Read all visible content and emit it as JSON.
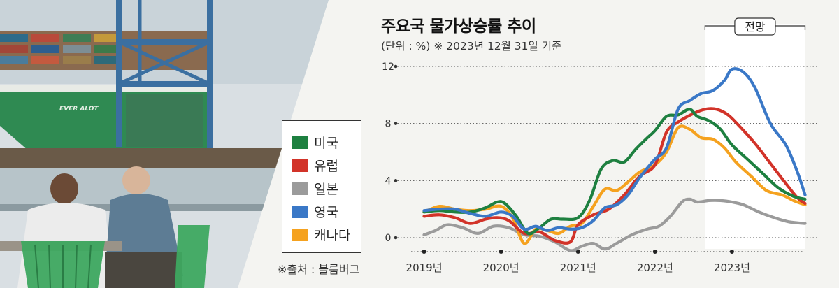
{
  "colors": {
    "us": "#1e8040",
    "europe": "#d23329",
    "japan": "#9b9b9b",
    "uk": "#3a78c7",
    "canada": "#f5a21f",
    "grid": "#555555",
    "forecast_band": "#ffffff"
  },
  "legend": [
    {
      "label": "미국",
      "color": "#1e8040"
    },
    {
      "label": "유럽",
      "color": "#d23329"
    },
    {
      "label": "일본",
      "color": "#9b9b9b"
    },
    {
      "label": "영국",
      "color": "#3a78c7"
    },
    {
      "label": "캐나다",
      "color": "#f5a21f"
    }
  ],
  "source": "※출처 : 블룸버그",
  "photo": {
    "ship_name": "EVER ALOT"
  },
  "chart_data": {
    "type": "line",
    "title": "주요국 물가상승률 추이",
    "subtitle": "(단위 : %)  ※ 2023년 12월 31일 기준",
    "forecast_label": "전망",
    "forecast_range": [
      2022.65,
      2023.95
    ],
    "xlim": [
      2018.65,
      2024.1
    ],
    "ylim": [
      0,
      12
    ],
    "yticks": [
      0,
      4,
      8,
      12
    ],
    "xticks": [
      {
        "value": 2019.0,
        "label": "2019년"
      },
      {
        "value": 2020.0,
        "label": "2020년"
      },
      {
        "value": 2021.0,
        "label": "2021년"
      },
      {
        "value": 2022.0,
        "label": "2022년"
      },
      {
        "value": 2023.0,
        "label": "2023년"
      }
    ],
    "grid": "horizontal-dotted",
    "legend_position": "left",
    "series": [
      {
        "name": "미국",
        "key": "us",
        "points": [
          [
            2019.0,
            1.8
          ],
          [
            2019.2,
            1.9
          ],
          [
            2019.4,
            1.8
          ],
          [
            2019.6,
            1.8
          ],
          [
            2019.8,
            2.1
          ],
          [
            2019.95,
            2.5
          ],
          [
            2020.05,
            2.4
          ],
          [
            2020.2,
            1.5
          ],
          [
            2020.35,
            0.3
          ],
          [
            2020.5,
            0.7
          ],
          [
            2020.65,
            1.3
          ],
          [
            2020.8,
            1.3
          ],
          [
            2021.0,
            1.4
          ],
          [
            2021.15,
            2.6
          ],
          [
            2021.3,
            4.8
          ],
          [
            2021.45,
            5.4
          ],
          [
            2021.6,
            5.3
          ],
          [
            2021.75,
            6.2
          ],
          [
            2021.9,
            7.0
          ],
          [
            2022.0,
            7.5
          ],
          [
            2022.15,
            8.5
          ],
          [
            2022.3,
            8.6
          ],
          [
            2022.45,
            9.0
          ],
          [
            2022.55,
            8.5
          ],
          [
            2022.7,
            8.2
          ],
          [
            2022.85,
            7.6
          ],
          [
            2023.0,
            6.5
          ],
          [
            2023.2,
            5.5
          ],
          [
            2023.4,
            4.5
          ],
          [
            2023.6,
            3.5
          ],
          [
            2023.8,
            2.9
          ],
          [
            2023.95,
            2.7
          ]
        ]
      },
      {
        "name": "유럽",
        "key": "europe",
        "points": [
          [
            2019.0,
            1.5
          ],
          [
            2019.2,
            1.6
          ],
          [
            2019.4,
            1.4
          ],
          [
            2019.6,
            1.0
          ],
          [
            2019.8,
            1.3
          ],
          [
            2019.95,
            1.4
          ],
          [
            2020.1,
            1.2
          ],
          [
            2020.3,
            0.3
          ],
          [
            2020.5,
            0.4
          ],
          [
            2020.7,
            -0.2
          ],
          [
            2020.9,
            -0.3
          ],
          [
            2021.0,
            0.9
          ],
          [
            2021.2,
            1.6
          ],
          [
            2021.4,
            2.0
          ],
          [
            2021.6,
            3.0
          ],
          [
            2021.8,
            4.3
          ],
          [
            2022.0,
            5.1
          ],
          [
            2022.15,
            7.4
          ],
          [
            2022.3,
            8.1
          ],
          [
            2022.5,
            8.7
          ],
          [
            2022.65,
            9.0
          ],
          [
            2022.8,
            9.0
          ],
          [
            2022.95,
            8.6
          ],
          [
            2023.1,
            7.8
          ],
          [
            2023.3,
            6.6
          ],
          [
            2023.5,
            5.2
          ],
          [
            2023.7,
            3.8
          ],
          [
            2023.85,
            2.8
          ],
          [
            2023.95,
            2.4
          ]
        ]
      },
      {
        "name": "일본",
        "key": "japan",
        "points": [
          [
            2019.0,
            0.2
          ],
          [
            2019.15,
            0.5
          ],
          [
            2019.3,
            0.9
          ],
          [
            2019.5,
            0.7
          ],
          [
            2019.7,
            0.3
          ],
          [
            2019.9,
            0.8
          ],
          [
            2020.1,
            0.7
          ],
          [
            2020.3,
            0.2
          ],
          [
            2020.5,
            0.1
          ],
          [
            2020.7,
            -0.3
          ],
          [
            2020.9,
            -0.9
          ],
          [
            2021.05,
            -0.6
          ],
          [
            2021.2,
            -0.4
          ],
          [
            2021.35,
            -0.8
          ],
          [
            2021.5,
            -0.4
          ],
          [
            2021.7,
            0.2
          ],
          [
            2021.9,
            0.6
          ],
          [
            2022.05,
            0.8
          ],
          [
            2022.2,
            1.5
          ],
          [
            2022.35,
            2.5
          ],
          [
            2022.45,
            2.7
          ],
          [
            2022.55,
            2.5
          ],
          [
            2022.7,
            2.6
          ],
          [
            2022.85,
            2.6
          ],
          [
            2023.0,
            2.5
          ],
          [
            2023.15,
            2.3
          ],
          [
            2023.35,
            1.8
          ],
          [
            2023.55,
            1.4
          ],
          [
            2023.75,
            1.1
          ],
          [
            2023.95,
            1.0
          ]
        ]
      },
      {
        "name": "영국",
        "key": "uk",
        "points": [
          [
            2019.0,
            1.9
          ],
          [
            2019.2,
            2.0
          ],
          [
            2019.4,
            2.0
          ],
          [
            2019.6,
            1.7
          ],
          [
            2019.8,
            1.5
          ],
          [
            2020.0,
            1.8
          ],
          [
            2020.15,
            1.5
          ],
          [
            2020.3,
            0.6
          ],
          [
            2020.45,
            0.8
          ],
          [
            2020.6,
            0.5
          ],
          [
            2020.75,
            0.7
          ],
          [
            2020.9,
            0.6
          ],
          [
            2021.05,
            0.7
          ],
          [
            2021.2,
            1.2
          ],
          [
            2021.35,
            2.1
          ],
          [
            2021.5,
            2.3
          ],
          [
            2021.65,
            3.0
          ],
          [
            2021.8,
            4.2
          ],
          [
            2022.0,
            5.5
          ],
          [
            2022.15,
            6.3
          ],
          [
            2022.3,
            9.0
          ],
          [
            2022.45,
            9.6
          ],
          [
            2022.6,
            10.1
          ],
          [
            2022.75,
            10.3
          ],
          [
            2022.9,
            11.0
          ],
          [
            2023.0,
            11.8
          ],
          [
            2023.15,
            11.6
          ],
          [
            2023.3,
            10.5
          ],
          [
            2023.5,
            8.0
          ],
          [
            2023.7,
            6.5
          ],
          [
            2023.85,
            4.6
          ],
          [
            2023.95,
            3.0
          ]
        ]
      },
      {
        "name": "캐나다",
        "key": "canada",
        "points": [
          [
            2019.0,
            1.8
          ],
          [
            2019.2,
            2.2
          ],
          [
            2019.4,
            2.0
          ],
          [
            2019.6,
            1.9
          ],
          [
            2019.8,
            2.0
          ],
          [
            2020.0,
            2.2
          ],
          [
            2020.15,
            1.4
          ],
          [
            2020.3,
            -0.4
          ],
          [
            2020.45,
            0.6
          ],
          [
            2020.6,
            0.5
          ],
          [
            2020.75,
            0.3
          ],
          [
            2020.9,
            0.8
          ],
          [
            2021.05,
            1.0
          ],
          [
            2021.2,
            2.2
          ],
          [
            2021.35,
            3.4
          ],
          [
            2021.5,
            3.3
          ],
          [
            2021.65,
            3.9
          ],
          [
            2021.8,
            4.6
          ],
          [
            2022.0,
            5.1
          ],
          [
            2022.15,
            6.0
          ],
          [
            2022.3,
            7.7
          ],
          [
            2022.45,
            7.6
          ],
          [
            2022.6,
            7.0
          ],
          [
            2022.75,
            6.9
          ],
          [
            2022.9,
            6.3
          ],
          [
            2023.05,
            5.3
          ],
          [
            2023.25,
            4.3
          ],
          [
            2023.45,
            3.3
          ],
          [
            2023.65,
            3.0
          ],
          [
            2023.8,
            2.6
          ],
          [
            2023.95,
            2.3
          ]
        ]
      }
    ]
  }
}
